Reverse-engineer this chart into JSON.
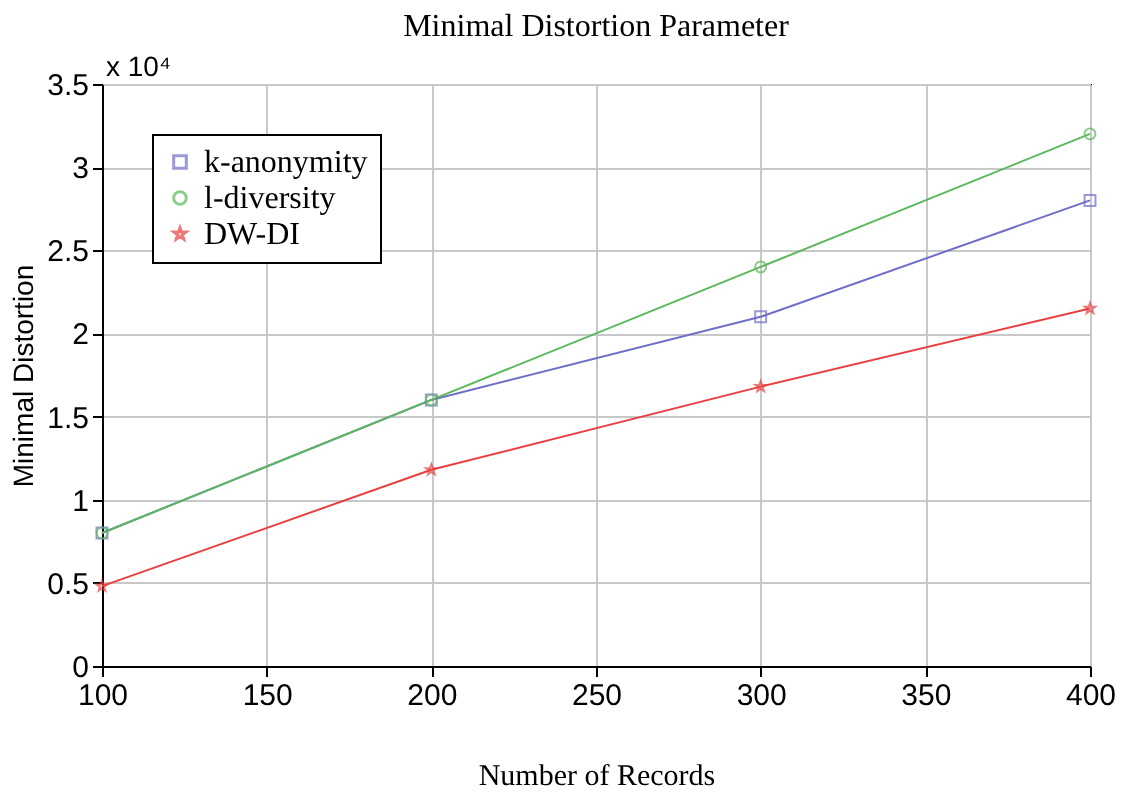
{
  "chart_data": {
    "type": "line",
    "title": "Minimal Distortion Parameter",
    "xlabel": "Number of Records",
    "ylabel": "Minimal Distortion",
    "annotations": [
      "x 10⁴"
    ],
    "x": [
      100,
      200,
      300,
      400
    ],
    "series": [
      {
        "name": "k-anonymity",
        "color": "#6f6fc8",
        "marker": "square",
        "values": [
          0.8,
          1.6,
          2.1,
          2.8
        ]
      },
      {
        "name": "l-diversity",
        "color": "#5cb85c",
        "marker": "circle",
        "values": [
          0.8,
          1.6,
          2.4,
          3.2
        ]
      },
      {
        "name": "DW-DI",
        "color": "#e84040",
        "marker": "star",
        "values": [
          0.48,
          1.18,
          1.68,
          2.15
        ]
      }
    ],
    "xlim": [
      100,
      400
    ],
    "xticks": [
      100,
      150,
      200,
      250,
      300,
      350,
      400
    ],
    "ylim": [
      0,
      3.5
    ],
    "yticks": [
      0,
      0.5,
      1,
      1.5,
      2,
      2.5,
      3,
      3.5
    ],
    "grid": true,
    "legend": "top left",
    "line_style": "solid"
  }
}
